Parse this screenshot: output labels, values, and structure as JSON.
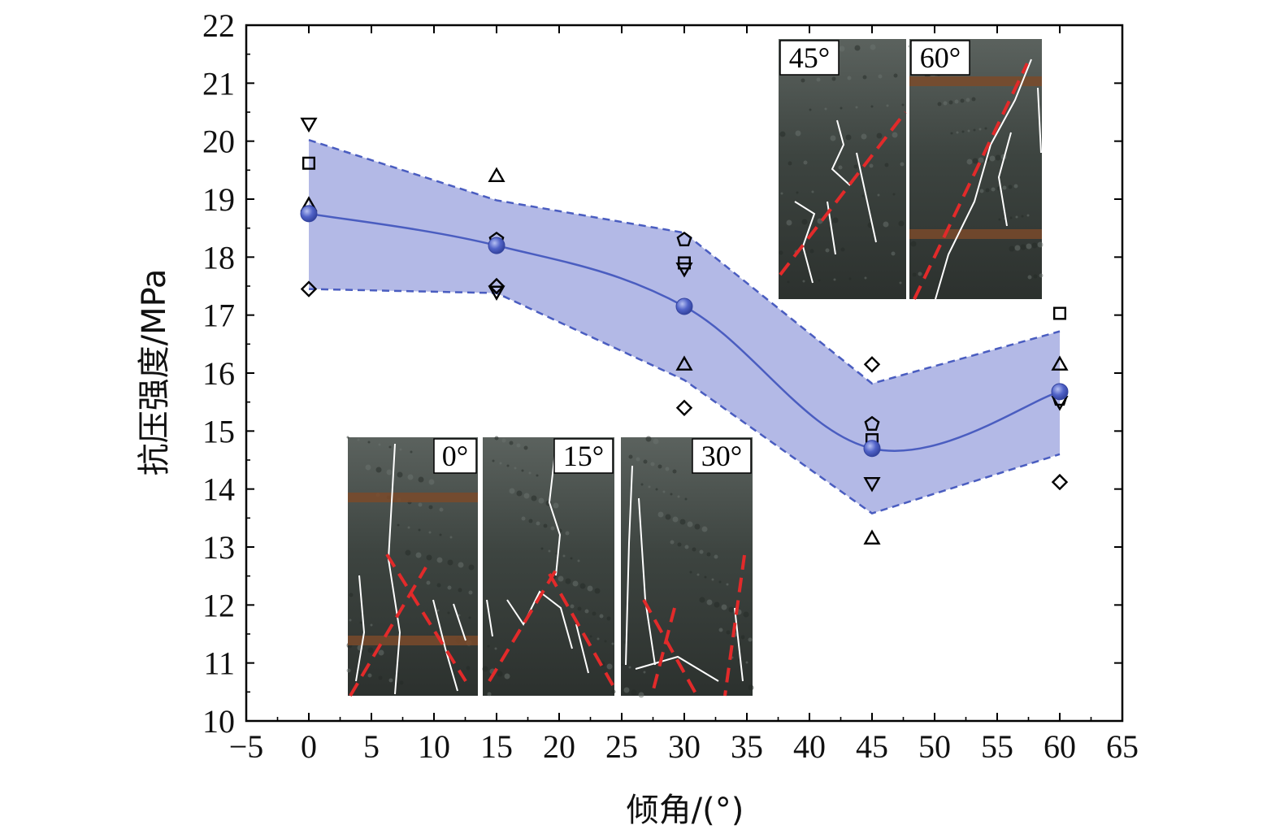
{
  "chart_data": {
    "type": "scatter",
    "xlabel": "倾角/(°)",
    "ylabel": "抗压强度/MPa",
    "xlim": [
      -5,
      65
    ],
    "ylim": [
      10,
      22
    ],
    "x_ticks": [
      -5,
      0,
      5,
      10,
      15,
      20,
      25,
      30,
      35,
      40,
      45,
      50,
      55,
      60,
      65
    ],
    "y_ticks": [
      10,
      11,
      12,
      13,
      14,
      15,
      16,
      17,
      18,
      19,
      20,
      21,
      22
    ],
    "x_tick_labels": [
      "−5",
      "0",
      "5",
      "10",
      "15",
      "20",
      "25",
      "30",
      "35",
      "40",
      "45",
      "50",
      "55",
      "60",
      "65"
    ],
    "y_tick_labels": [
      "10",
      "11",
      "12",
      "13",
      "14",
      "15",
      "16",
      "17",
      "18",
      "19",
      "20",
      "21",
      "22"
    ],
    "grid": false,
    "series": [
      {
        "marker": "square",
        "color": "#000000",
        "points": [
          [
            0,
            19.62
          ],
          [
            30,
            17.9
          ],
          [
            45,
            14.85
          ],
          [
            60,
            17.03
          ]
        ]
      },
      {
        "marker": "triangle-up",
        "color": "#000000",
        "points": [
          [
            0,
            18.9
          ],
          [
            15,
            19.4
          ],
          [
            30,
            16.15
          ],
          [
            45,
            13.15
          ],
          [
            60,
            16.15
          ]
        ]
      },
      {
        "marker": "triangle-down",
        "color": "#000000",
        "points": [
          [
            0,
            20.3
          ],
          [
            15,
            17.4
          ],
          [
            30,
            17.8
          ],
          [
            45,
            14.1
          ],
          [
            60,
            15.5
          ]
        ]
      },
      {
        "marker": "diamond",
        "color": "#000000",
        "points": [
          [
            0,
            17.45
          ],
          [
            15,
            17.5
          ],
          [
            30,
            15.4
          ],
          [
            45,
            16.15
          ],
          [
            60,
            14.12
          ]
        ]
      },
      {
        "marker": "pentagon",
        "color": "#000000",
        "points": [
          [
            15,
            18.3
          ],
          [
            30,
            18.3
          ],
          [
            45,
            15.12
          ],
          [
            60,
            15.55
          ]
        ]
      },
      {
        "marker": "circle",
        "color": "#4a5dc0",
        "points": [
          [
            0,
            18.75
          ],
          [
            15,
            18.2
          ],
          [
            30,
            17.15
          ],
          [
            45,
            14.7
          ],
          [
            60,
            15.68
          ]
        ]
      }
    ],
    "mean_curve": {
      "x": [
        0,
        15,
        30,
        45,
        60
      ],
      "y": [
        18.75,
        18.2,
        17.15,
        14.7,
        15.68
      ],
      "color": "#4a5dc0"
    },
    "band": {
      "x": [
        0,
        15,
        30,
        45,
        60
      ],
      "upper": [
        20.02,
        18.98,
        18.42,
        15.82,
        16.72
      ],
      "lower": [
        17.45,
        17.38,
        15.88,
        13.58,
        14.6
      ],
      "fill": "#b3b9e6",
      "edge": "#4a5dc0"
    },
    "inset_photos": {
      "bottom": [
        "0°",
        "15°",
        "30°"
      ],
      "top": [
        "45°",
        "60°"
      ]
    }
  }
}
